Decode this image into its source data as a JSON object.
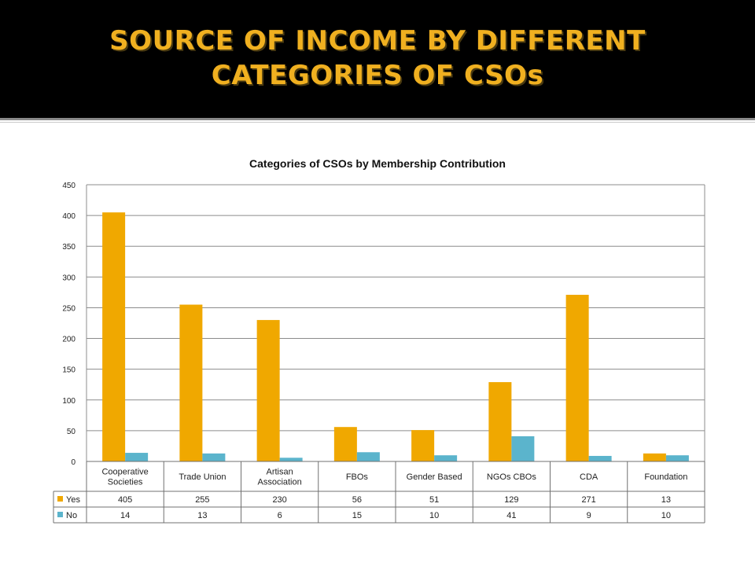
{
  "slide": {
    "title_line1": "SOURCE OF INCOME BY DIFFERENT",
    "title_line2": "CATEGORIES OF CSOs"
  },
  "chart_data": {
    "type": "bar",
    "title": "Categories of CSOs by  Membership Contribution",
    "categories": [
      "Cooperative Societies",
      "Trade Union",
      "Artisan Association",
      "FBOs",
      "Gender Based",
      "NGOs CBOs",
      "CDA",
      "Foundation"
    ],
    "category_lines": [
      [
        "Cooperative",
        "Societies"
      ],
      [
        "Trade Union"
      ],
      [
        "Artisan",
        "Association"
      ],
      [
        "FBOs"
      ],
      [
        "Gender Based"
      ],
      [
        "NGOs CBOs"
      ],
      [
        "CDA"
      ],
      [
        "Foundation"
      ]
    ],
    "series": [
      {
        "name": "Yes",
        "color": "#f0a800",
        "values": [
          405,
          255,
          230,
          56,
          51,
          129,
          271,
          13
        ]
      },
      {
        "name": "No",
        "color": "#5bb4cc",
        "values": [
          14,
          13,
          6,
          15,
          10,
          41,
          9,
          10
        ]
      }
    ],
    "ylim": [
      0,
      450
    ],
    "yticks": [
      0,
      50,
      100,
      150,
      200,
      250,
      300,
      350,
      400,
      450
    ],
    "grid": true,
    "legend": "data table"
  }
}
